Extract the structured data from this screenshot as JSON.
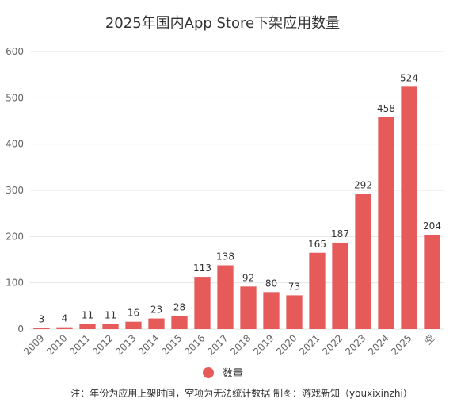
{
  "chart_data": {
    "type": "bar",
    "title": "2025年国内App Store下架应用数量",
    "categories": [
      "2009",
      "2010",
      "2011",
      "2012",
      "2013",
      "2014",
      "2015",
      "2016",
      "2017",
      "2018",
      "2019",
      "2020",
      "2021",
      "2022",
      "2023",
      "2024",
      "2025",
      "空"
    ],
    "series": [
      {
        "name": "数量",
        "values": [
          3,
          4,
          11,
          11,
          16,
          23,
          28,
          113,
          138,
          92,
          80,
          73,
          165,
          187,
          292,
          458,
          524,
          204
        ],
        "color": "#e65a5a"
      }
    ],
    "yticks": [
      0,
      100,
      200,
      300,
      400,
      500,
      600
    ],
    "ylim": [
      0,
      600
    ],
    "grid": true,
    "legend_position": "bottom",
    "note": "注：年份为应用上架时间，空项为无法统计数据  制图：游戏新知（youxixinzhi）"
  }
}
